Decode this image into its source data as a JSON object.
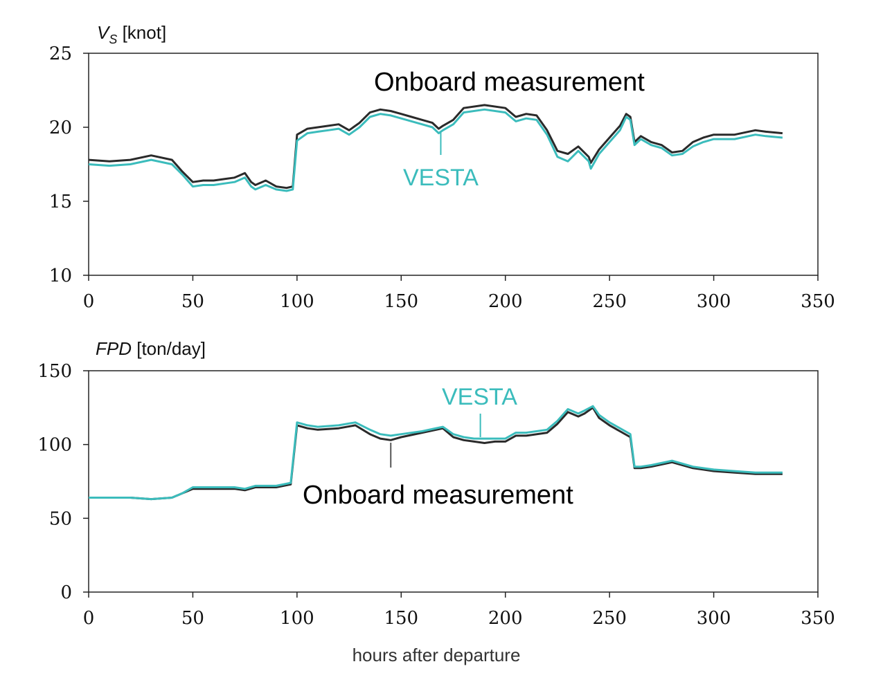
{
  "colors": {
    "onboard": "#2a2a2a",
    "vesta": "#3bbcbc",
    "axis": "#222222"
  },
  "x_axis_label": "hours after departure",
  "chart_data": [
    {
      "type": "line",
      "ylabel_var": "V",
      "ylabel_sub": "S",
      "ylabel_unit": " [knot]",
      "xlim": [
        0,
        350
      ],
      "ylim": [
        10,
        25
      ],
      "xticks": [
        0,
        50,
        100,
        150,
        200,
        250,
        300,
        350
      ],
      "yticks": [
        10,
        15,
        20,
        25
      ],
      "annotations": [
        {
          "text": "Onboard measurement",
          "series": "Onboard measurement"
        },
        {
          "text": "VESTA",
          "series": "VESTA",
          "pointer_x": 169
        }
      ],
      "series": [
        {
          "name": "Onboard measurement",
          "x": [
            0,
            10,
            20,
            30,
            40,
            45,
            50,
            55,
            60,
            65,
            70,
            75,
            78,
            80,
            85,
            90,
            95,
            98,
            100,
            105,
            110,
            115,
            120,
            125,
            130,
            135,
            140,
            145,
            150,
            155,
            160,
            165,
            168,
            170,
            175,
            180,
            190,
            200,
            205,
            210,
            215,
            220,
            225,
            230,
            235,
            240,
            241,
            245,
            250,
            255,
            258,
            260,
            262,
            265,
            270,
            275,
            280,
            285,
            290,
            295,
            300,
            310,
            320,
            325,
            333
          ],
          "y": [
            17.8,
            17.7,
            17.8,
            18.1,
            17.8,
            17.0,
            16.3,
            16.4,
            16.4,
            16.5,
            16.6,
            16.9,
            16.3,
            16.1,
            16.4,
            16.0,
            15.9,
            16.0,
            19.5,
            19.9,
            20.0,
            20.1,
            20.2,
            19.8,
            20.3,
            21.0,
            21.2,
            21.1,
            20.9,
            20.7,
            20.5,
            20.3,
            19.9,
            20.1,
            20.5,
            21.3,
            21.5,
            21.3,
            20.7,
            20.9,
            20.8,
            19.8,
            18.4,
            18.2,
            18.7,
            18.0,
            17.6,
            18.5,
            19.3,
            20.1,
            20.9,
            20.7,
            19.0,
            19.4,
            19.0,
            18.8,
            18.3,
            18.4,
            19.0,
            19.3,
            19.5,
            19.5,
            19.8,
            19.7,
            19.6
          ]
        },
        {
          "name": "VESTA",
          "x": [
            0,
            10,
            20,
            30,
            40,
            45,
            50,
            55,
            60,
            65,
            70,
            75,
            78,
            80,
            85,
            90,
            95,
            98,
            100,
            105,
            110,
            115,
            120,
            125,
            130,
            135,
            140,
            145,
            150,
            155,
            160,
            165,
            168,
            170,
            175,
            180,
            190,
            200,
            205,
            210,
            215,
            220,
            225,
            230,
            235,
            240,
            241,
            245,
            250,
            255,
            258,
            260,
            262,
            265,
            270,
            275,
            280,
            285,
            290,
            295,
            300,
            310,
            320,
            325,
            333
          ],
          "y": [
            17.5,
            17.4,
            17.5,
            17.8,
            17.5,
            16.8,
            16.0,
            16.1,
            16.1,
            16.2,
            16.3,
            16.6,
            16.0,
            15.8,
            16.1,
            15.8,
            15.7,
            15.8,
            19.1,
            19.6,
            19.7,
            19.8,
            19.9,
            19.5,
            20.0,
            20.7,
            20.9,
            20.8,
            20.6,
            20.4,
            20.2,
            20.0,
            19.6,
            19.8,
            20.2,
            21.0,
            21.2,
            21.0,
            20.4,
            20.6,
            20.5,
            19.5,
            18.0,
            17.7,
            18.4,
            17.7,
            17.2,
            18.2,
            19.0,
            19.8,
            20.7,
            20.5,
            18.8,
            19.2,
            18.8,
            18.6,
            18.1,
            18.2,
            18.7,
            19.0,
            19.2,
            19.2,
            19.5,
            19.4,
            19.3
          ]
        }
      ]
    },
    {
      "type": "line",
      "ylabel_var": "FPD",
      "ylabel_unit": " [ton/day]",
      "xlabel": "hours after departure",
      "xlim": [
        0,
        350
      ],
      "ylim": [
        0,
        150
      ],
      "xticks": [
        0,
        50,
        100,
        150,
        200,
        250,
        300,
        350
      ],
      "yticks": [
        0,
        50,
        100,
        150
      ],
      "annotations": [
        {
          "text": "VESTA",
          "series": "VESTA",
          "pointer_x": 188
        },
        {
          "text": "Onboard measurement",
          "series": "Onboard measurement",
          "pointer_x": 145
        }
      ],
      "series": [
        {
          "name": "Onboard measurement",
          "x": [
            0,
            10,
            20,
            30,
            40,
            45,
            50,
            55,
            60,
            70,
            75,
            80,
            90,
            97,
            100,
            105,
            110,
            120,
            128,
            135,
            140,
            145,
            150,
            160,
            170,
            175,
            180,
            185,
            190,
            195,
            200,
            205,
            210,
            220,
            225,
            230,
            235,
            238,
            242,
            245,
            250,
            255,
            260,
            262,
            265,
            270,
            280,
            290,
            300,
            310,
            320,
            333
          ],
          "y": [
            64,
            64,
            64,
            63,
            64,
            67,
            70,
            70,
            70,
            70,
            69,
            71,
            71,
            73,
            113,
            111,
            110,
            111,
            113,
            107,
            104,
            103,
            105,
            108,
            111,
            105,
            103,
            102,
            101,
            102,
            102,
            106,
            106,
            108,
            114,
            122,
            119,
            121,
            125,
            118,
            113,
            109,
            105,
            84,
            84,
            85,
            88,
            84,
            82,
            81,
            80,
            80
          ]
        },
        {
          "name": "VESTA",
          "x": [
            0,
            10,
            20,
            30,
            40,
            45,
            50,
            55,
            60,
            70,
            75,
            80,
            90,
            97,
            100,
            105,
            110,
            120,
            128,
            135,
            140,
            145,
            150,
            160,
            170,
            175,
            180,
            185,
            190,
            195,
            200,
            205,
            210,
            220,
            225,
            230,
            235,
            238,
            242,
            245,
            250,
            255,
            260,
            262,
            265,
            270,
            280,
            290,
            300,
            310,
            320,
            333
          ],
          "y": [
            64,
            64,
            64,
            63,
            64,
            67,
            71,
            71,
            71,
            71,
            70,
            72,
            72,
            74,
            115,
            113,
            112,
            113,
            115,
            110,
            107,
            106,
            107,
            109,
            112,
            107,
            105,
            104,
            104,
            104,
            104,
            108,
            108,
            110,
            116,
            124,
            121,
            123,
            126,
            120,
            115,
            111,
            107,
            85,
            85,
            86,
            89,
            85,
            83,
            82,
            81,
            81
          ]
        }
      ]
    }
  ]
}
